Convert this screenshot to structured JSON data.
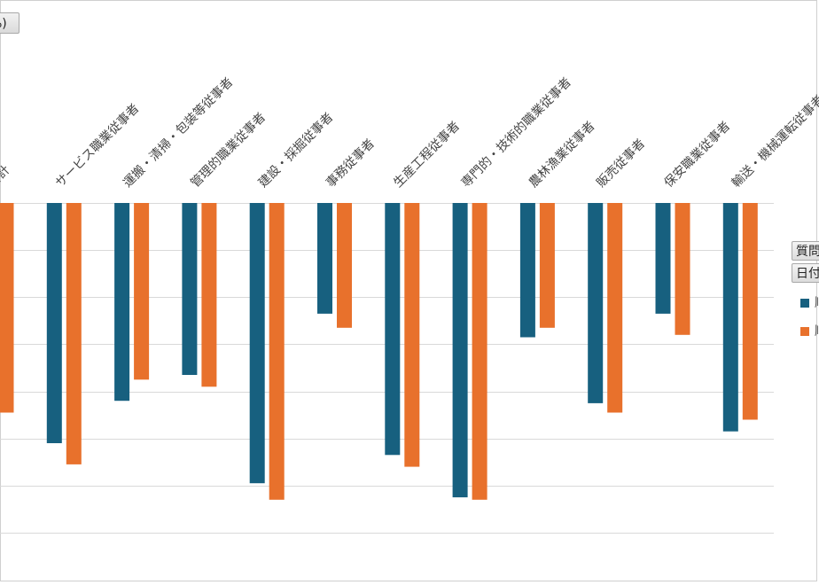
{
  "pivot": {
    "field_button_label": "%)",
    "legend_fields": [
      "質問",
      "日付"
    ],
    "legend_entries": [
      "順",
      "順"
    ]
  },
  "colors": {
    "series1": "#17607f",
    "series2": "#e8712c",
    "grid": "#d9d9d9"
  },
  "chart_data": {
    "type": "bar",
    "categories": [
      "合計",
      "サービス職業従事者",
      "運搬・清掃・包装等従事者",
      "管理的職業従事者",
      "建設・採掘従事者",
      "事務従事者",
      "生産工程従事者",
      "専門的・技術的職業従事者",
      "農林漁業従事者",
      "販売従事者",
      "保安職業従事者",
      "輸送・機械運転従事者"
    ],
    "series": [
      {
        "values": [
          null,
          -5.1,
          -4.2,
          -3.65,
          -5.95,
          -2.35,
          -5.35,
          -6.25,
          -2.85,
          -4.25,
          -2.35,
          -4.85
        ]
      },
      {
        "values": [
          -4.45,
          -5.55,
          -3.75,
          -3.9,
          -6.3,
          -2.65,
          -5.6,
          -6.3,
          -2.65,
          -4.45,
          -2.8,
          -4.6
        ]
      }
    ],
    "ylim": [
      -7,
      0
    ],
    "gridlines": [
      0,
      -1,
      -2,
      -3,
      -4,
      -5,
      -6,
      -7
    ],
    "grid": true,
    "legend_position": "right"
  }
}
